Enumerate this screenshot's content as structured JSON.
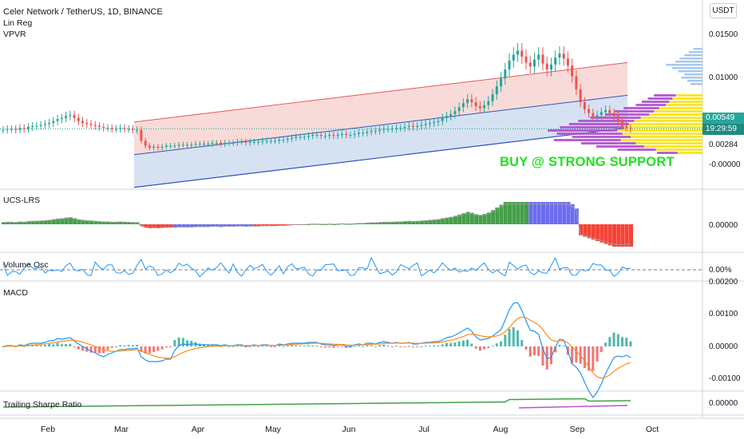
{
  "header": {
    "title": "Celer Network / TetherUS, 1D, BINANCE",
    "indicators": [
      "Lin Reg",
      "VPVR"
    ],
    "currency_button": "USDT"
  },
  "price_axis": {
    "ticks": [
      "0.01500",
      "0.01000",
      "0.00284",
      "-0.00000"
    ],
    "last_price": "0.00549",
    "countdown": "19:29:59",
    "colors": {
      "last_price_bg": "#26a69a",
      "countdown_bg": "#26a69a"
    }
  },
  "annotation": {
    "text": "BUY @ STRONG SUPPORT",
    "color": "#1fe11f"
  },
  "panes": {
    "ucs": {
      "label": "UCS-LRS",
      "tick": "0.00000"
    },
    "volosc": {
      "label": "Volume Osc",
      "tick": "0.00%"
    },
    "macd": {
      "label": "MACD",
      "ticks": [
        "0.00200",
        "0.00100",
        "0.00000",
        "-0.00100"
      ]
    },
    "sharpe": {
      "label": "Trailing Sharpe Ratio",
      "tick": "0.00000"
    }
  },
  "time_axis": {
    "months": [
      "Feb",
      "Mar",
      "Apr",
      "May",
      "Jun",
      "Jul",
      "Aug",
      "Sep",
      "Oct"
    ]
  },
  "chart_data": {
    "type": "candlestick",
    "symbol": "Celer Network / TetherUS",
    "interval": "1D",
    "exchange": "BINANCE",
    "price_range": [
      -0.0005,
      0.0165
    ],
    "months": [
      "Feb",
      "Mar",
      "Apr",
      "May",
      "Jun",
      "Jul",
      "Aug",
      "Sep",
      "Oct"
    ],
    "close_series": [
      0.0054,
      0.0055,
      0.0055,
      0.0054,
      0.0056,
      0.0055,
      0.0057,
      0.0058,
      0.0058,
      0.0059,
      0.006,
      0.0061,
      0.0063,
      0.0065,
      0.0066,
      0.0068,
      0.0069,
      0.0066,
      0.0063,
      0.0061,
      0.006,
      0.0059,
      0.0058,
      0.0057,
      0.0056,
      0.0056,
      0.0055,
      0.0055,
      0.0056,
      0.0055,
      0.0055,
      0.0054,
      0.0054,
      0.0043,
      0.0038,
      0.0036,
      0.0037,
      0.0036,
      0.0037,
      0.0038,
      0.0038,
      0.0038,
      0.0039,
      0.0039,
      0.0039,
      0.0039,
      0.004,
      0.004,
      0.004,
      0.004,
      0.0041,
      0.0041,
      0.004,
      0.0041,
      0.0041,
      0.0041,
      0.0042,
      0.0042,
      0.0041,
      0.0042,
      0.0042,
      0.0042,
      0.0043,
      0.0043,
      0.0043,
      0.0043,
      0.0044,
      0.0044,
      0.0045,
      0.0046,
      0.0047,
      0.0047,
      0.0047,
      0.0048,
      0.0049,
      0.0049,
      0.0048,
      0.0048,
      0.0049,
      0.0048,
      0.0049,
      0.005,
      0.0049,
      0.0049,
      0.005,
      0.0051,
      0.0051,
      0.0052,
      0.0053,
      0.0053,
      0.0054,
      0.0055,
      0.0055,
      0.0055,
      0.0056,
      0.0056,
      0.0057,
      0.0058,
      0.0057,
      0.0058,
      0.0059,
      0.006,
      0.0061,
      0.0062,
      0.0063,
      0.0066,
      0.0068,
      0.007,
      0.0073,
      0.0077,
      0.0081,
      0.0085,
      0.0082,
      0.0078,
      0.0076,
      0.0079,
      0.0083,
      0.009,
      0.0098,
      0.0106,
      0.0115,
      0.0124,
      0.013,
      0.0134,
      0.0128,
      0.0122,
      0.0118,
      0.0125,
      0.013,
      0.0121,
      0.0115,
      0.012,
      0.0127,
      0.0131,
      0.0126,
      0.0119,
      0.0108,
      0.0095,
      0.0082,
      0.0075,
      0.0071,
      0.0067,
      0.0069,
      0.0072,
      0.0074,
      0.0071,
      0.0068,
      0.0063,
      0.0058,
      0.0056,
      0.0055
    ],
    "linreg_channel": {
      "upper": {
        "start": 0.0062,
        "end": 0.0122,
        "color": "#e05a5a"
      },
      "mid": {
        "start": 0.0029,
        "end": 0.0089,
        "color": "#3454b4"
      },
      "lower": {
        "start": -0.0004,
        "end": 0.0056,
        "color": "#3454b4"
      }
    },
    "vpvr": {
      "note": "volume profile histogram on right edge; up-volume yellow, down-volume violet, upper rows light blue"
    },
    "indicators": {
      "ucs_lrs": {
        "name": "UCS-LRS",
        "colors": {
          "up": "#43a047",
          "mid": "#6c6cf0",
          "down": "#f44336"
        }
      },
      "volume_osc": {
        "name": "Volume Osc",
        "zero": "0.00%"
      },
      "macd": {
        "name": "MACD",
        "range": [
          -0.0012,
          0.002
        ],
        "colors": {
          "macd": "#2196f3",
          "signal": "#ff8c1a",
          "hist_up": "#26a69a",
          "hist_down": "#ef5350"
        }
      },
      "sharpe": {
        "name": "Trailing Sharpe Ratio",
        "colors": {
          "line": "#43a047",
          "ref": "#c050d0"
        }
      }
    }
  }
}
